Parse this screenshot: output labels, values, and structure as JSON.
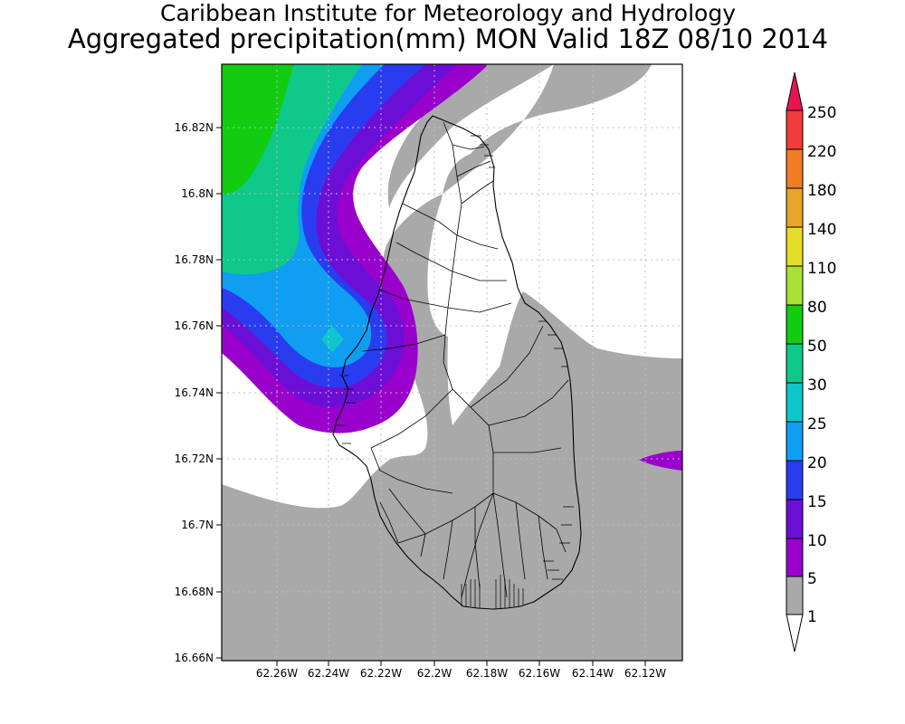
{
  "header": {
    "title": "Caribbean Institute for Meteorology and Hydrology",
    "subtitle": "Aggregated precipitation(mm) MON Valid 18Z 08/10 2014"
  },
  "map": {
    "lat_ticks": [
      "16.82N",
      "16.8N",
      "16.78N",
      "16.76N",
      "16.74N",
      "16.72N",
      "16.7N",
      "16.68N",
      "16.66N"
    ],
    "lon_ticks": [
      "62.26W",
      "62.24W",
      "62.22W",
      "62.2W",
      "62.18W",
      "62.16W",
      "62.14W",
      "62.12W"
    ],
    "colors": {
      "gray": "#a9a9a9",
      "purple": "#9a00cc",
      "violet": "#6c0fd6",
      "blue": "#2a3cf0",
      "lightblue": "#0f9ef2",
      "cyan": "#10c5cc",
      "seagreen": "#0fc98a",
      "green": "#12cc12"
    }
  },
  "colorbar": {
    "labels": [
      "250",
      "220",
      "180",
      "140",
      "110",
      "80",
      "50",
      "30",
      "25",
      "20",
      "15",
      "10",
      "5",
      "1"
    ],
    "colors": [
      "#e6154f",
      "#f03c3c",
      "#f07c24",
      "#e6a52a",
      "#e6dd2a",
      "#a8e236",
      "#12cc12",
      "#0fc98a",
      "#10c5cc",
      "#0f9ef2",
      "#2a3cf0",
      "#6c0fd6",
      "#9a00cc",
      "#a9a9a9",
      "#ffffff"
    ]
  }
}
